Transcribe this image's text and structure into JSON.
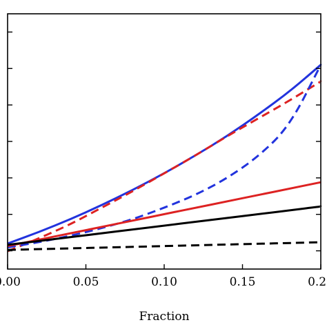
{
  "chart_data": {
    "type": "line",
    "title": "",
    "xlabel": "Fraction",
    "ylabel": "",
    "xlim": [
      0.0,
      0.2
    ],
    "ylim": [
      0.0,
      1.0
    ],
    "x_ticks": [
      0.0,
      0.05,
      0.1,
      0.15,
      0.2
    ],
    "x_tick_labels": [
      "0.00",
      "0.05",
      "0.10",
      "0.15",
      "0.20"
    ],
    "y_tick_count": 7,
    "grid": false,
    "legend": "none",
    "x": [
      0.0,
      0.02,
      0.04,
      0.06,
      0.08,
      0.1,
      0.12,
      0.14,
      0.16,
      0.18,
      0.2
    ],
    "series": [
      {
        "color": "#2233dd",
        "dash": "solid",
        "values": [
          0.1,
          0.145,
          0.195,
          0.25,
          0.31,
          0.375,
          0.445,
          0.52,
          0.605,
          0.695,
          0.8
        ]
      },
      {
        "color": "#dd2222",
        "dash": "dashed",
        "values": [
          0.07,
          0.12,
          0.175,
          0.24,
          0.305,
          0.375,
          0.445,
          0.52,
          0.59,
          0.66,
          0.735
        ]
      },
      {
        "color": "#2233dd",
        "dash": "dashed",
        "values": [
          0.085,
          0.105,
          0.13,
          0.16,
          0.195,
          0.24,
          0.29,
          0.355,
          0.44,
          0.56,
          0.8
        ]
      },
      {
        "color": "#dd2222",
        "dash": "solid",
        "values": [
          0.09,
          0.115,
          0.14,
          0.165,
          0.19,
          0.215,
          0.24,
          0.265,
          0.29,
          0.315,
          0.34
        ]
      },
      {
        "color": "#000000",
        "dash": "solid",
        "values": [
          0.095,
          0.11,
          0.125,
          0.14,
          0.155,
          0.17,
          0.185,
          0.2,
          0.215,
          0.23,
          0.245
        ]
      },
      {
        "color": "#000000",
        "dash": "dashed",
        "values": [
          0.075,
          0.078,
          0.081,
          0.084,
          0.087,
          0.09,
          0.093,
          0.096,
          0.099,
          0.102,
          0.105
        ]
      }
    ]
  }
}
